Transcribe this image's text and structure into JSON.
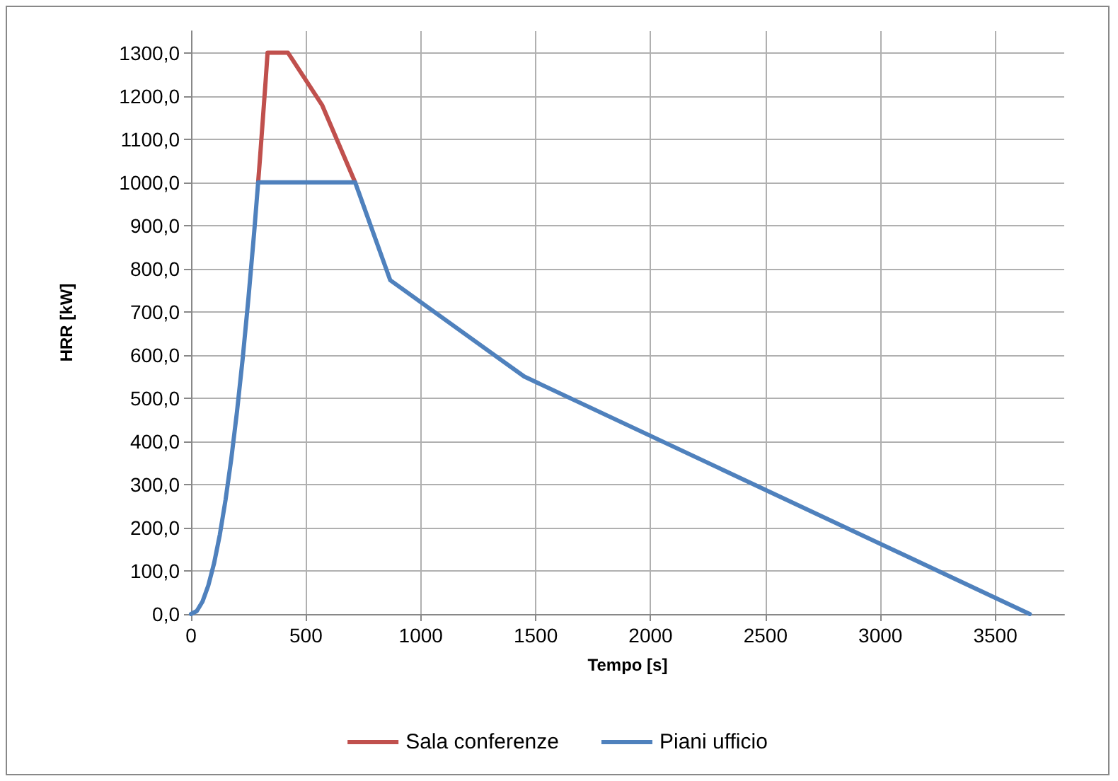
{
  "chart_data": {
    "type": "line",
    "xlabel": "Tempo [s]",
    "ylabel": "HRR [kW]",
    "xlim": [
      0,
      3800
    ],
    "xticks": [
      0,
      500,
      1000,
      1500,
      2000,
      2500,
      3000,
      3500
    ],
    "ylim": [
      0,
      1350
    ],
    "yticks": [
      {
        "value": 0,
        "label": "0,0"
      },
      {
        "value": 100,
        "label": "100,0"
      },
      {
        "value": 200,
        "label": "200,0"
      },
      {
        "value": 300,
        "label": "300,0"
      },
      {
        "value": 400,
        "label": "400,0"
      },
      {
        "value": 500,
        "label": "500,0"
      },
      {
        "value": 600,
        "label": "600,0"
      },
      {
        "value": 700,
        "label": "700,0"
      },
      {
        "value": 800,
        "label": "800,0"
      },
      {
        "value": 900,
        "label": "900,0"
      },
      {
        "value": 1000,
        "label": "1000,0"
      },
      {
        "value": 1100,
        "label": "1100,0"
      },
      {
        "value": 1200,
        "label": "1200,0"
      },
      {
        "value": 1300,
        "label": "1300,0"
      }
    ],
    "grid": true,
    "legend": "bottom",
    "marker": "none",
    "line_style": "solid",
    "series": [
      {
        "name": "Sala conferenze",
        "color": "#c0504d",
        "x": [
          292,
          300,
          325,
          333,
          422,
          571,
          714
        ],
        "values": [
          1000,
          1055,
          1238,
          1300,
          1300,
          1178,
          1000
        ]
      },
      {
        "name": "Piani ufficio",
        "color": "#4f81bd",
        "x": [
          0,
          25,
          50,
          75,
          100,
          125,
          150,
          175,
          200,
          225,
          250,
          275,
          292,
          714,
          867,
          1450,
          3650
        ],
        "values": [
          0,
          7,
          29,
          66,
          117,
          183,
          264,
          359,
          469,
          593,
          733,
          886,
          1000,
          1000,
          773,
          550,
          0
        ]
      }
    ]
  }
}
